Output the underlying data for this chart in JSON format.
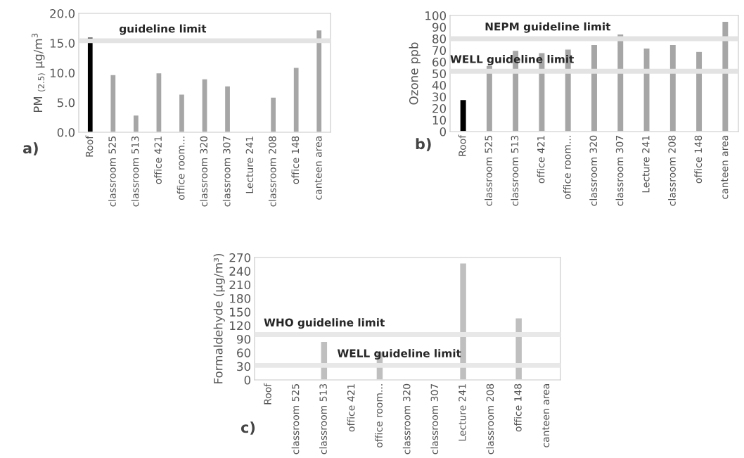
{
  "chart_data": [
    {
      "type": "bar",
      "ylabel": "PM $_{(2.5)}$ µg/m$^{3}$",
      "annotations": [
        "a)"
      ],
      "categories": [
        "Roof",
        "classroom 525",
        "classroom 513",
        "office 421",
        "office room...",
        "classroom 320",
        "classroom 307",
        "Lecture 241",
        "classroom 208",
        "office 148",
        "canteen area"
      ],
      "values": [
        16.0,
        9.7,
        2.9,
        10.0,
        6.4,
        9.0,
        7.8,
        null,
        5.9,
        10.9,
        17.2
      ],
      "colors": [
        "#000000",
        "#a6a6a6",
        "#a6a6a6",
        "#a6a6a6",
        "#a6a6a6",
        "#a6a6a6",
        "#a6a6a6",
        "#a6a6a6",
        "#a6a6a6",
        "#a6a6a6",
        "#a6a6a6"
      ],
      "ylim": [
        0,
        20
      ],
      "yticks": [
        {
          "value": 0,
          "label": "0.0"
        },
        {
          "value": 5,
          "label": "5.0"
        },
        {
          "value": 10,
          "label": "10.0"
        },
        {
          "value": 15,
          "label": "15.0"
        },
        {
          "value": 20,
          "label": "20.0"
        }
      ],
      "ref_lines": [
        {
          "axis": "y",
          "value": 15.4,
          "label": "guideline limit",
          "color": "#e3e3e3"
        }
      ],
      "grid": false,
      "legend": false
    },
    {
      "type": "bar",
      "ylabel": "Ozone ppb",
      "annotations": [
        "b)"
      ],
      "categories": [
        "Roof",
        "classroom 525",
        "classroom 513",
        "office 421",
        "office room...",
        "classroom 320",
        "classroom 307",
        "Lecture 241",
        "classroom 208",
        "office 148",
        "canteen area"
      ],
      "values": [
        27.5,
        57,
        70,
        68,
        71,
        75,
        84,
        72,
        75,
        69,
        95
      ],
      "colors": [
        "#000000",
        "#a6a6a6",
        "#a6a6a6",
        "#a6a6a6",
        "#a6a6a6",
        "#a6a6a6",
        "#a6a6a6",
        "#a6a6a6",
        "#a6a6a6",
        "#a6a6a6",
        "#a6a6a6"
      ],
      "ylim": [
        0,
        100
      ],
      "yticks": [
        0,
        10,
        20,
        30,
        40,
        50,
        60,
        70,
        80,
        90,
        100
      ],
      "ref_lines": [
        {
          "axis": "y",
          "value": 80,
          "label": "NEPM guideline limit",
          "color": "#e3e3e3"
        },
        {
          "axis": "y",
          "value": 52,
          "label": "WELL guideline limit",
          "color": "#e3e3e3"
        }
      ],
      "grid": false,
      "legend": false
    },
    {
      "type": "bar",
      "ylabel": "Formaldehyde (µg/m³)",
      "annotations": [
        "c)"
      ],
      "categories": [
        "Roof",
        "classroom 525",
        "classroom 513",
        "office 421",
        "office room...",
        "classroom 320",
        "classroom 307",
        "Lecture 241",
        "classroom 208",
        "office 148",
        "canteen area"
      ],
      "values": [
        null,
        null,
        85,
        null,
        62,
        null,
        null,
        258,
        null,
        137,
        null
      ],
      "color": "#bfbfbf",
      "ylim": [
        0,
        270
      ],
      "yticks": [
        0,
        30,
        60,
        90,
        120,
        150,
        180,
        210,
        240,
        270
      ],
      "ref_lines": [
        {
          "axis": "y",
          "value": 100,
          "label": "WHO guideline limit",
          "color": "#e8e8e8"
        },
        {
          "axis": "y",
          "value": 32,
          "label": "WELL guideline limit",
          "color": "#e8e8e8"
        }
      ],
      "grid": false,
      "legend": false
    }
  ]
}
